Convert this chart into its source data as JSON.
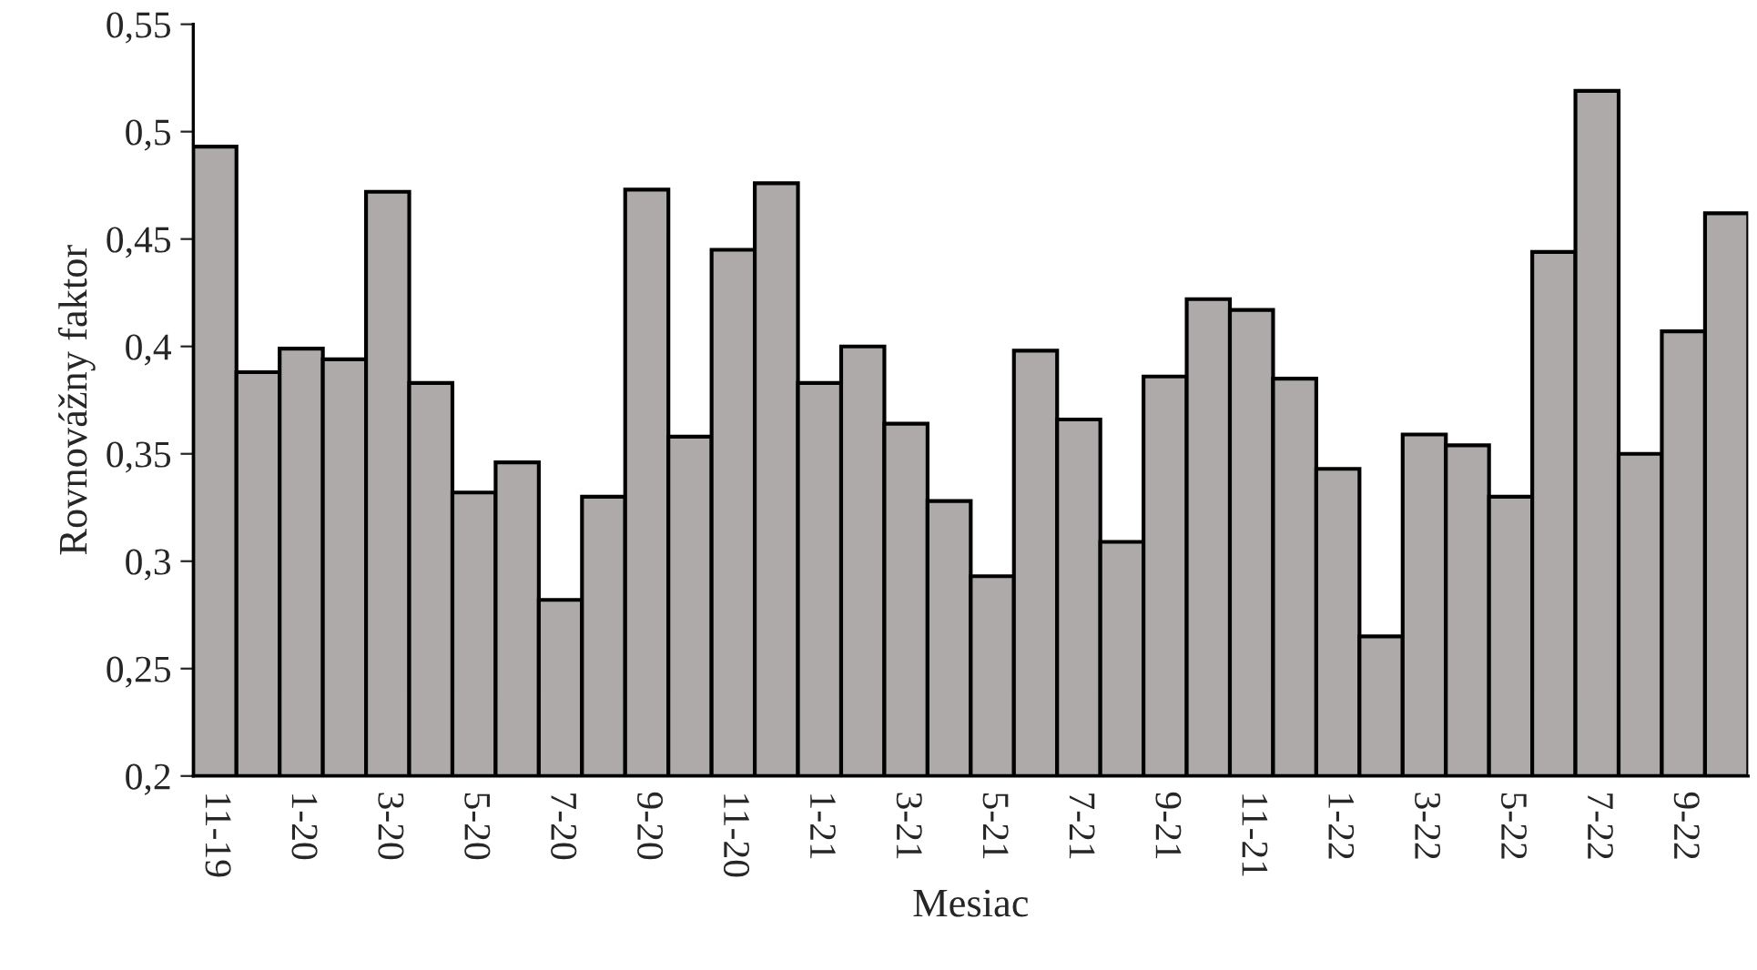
{
  "chart_data": {
    "type": "bar",
    "xlabel": "Mesiac",
    "ylabel": "Rovnovážny faktor",
    "categories": [
      "11-19",
      null,
      "1-20",
      null,
      "3-20",
      null,
      "5-20",
      null,
      "7-20",
      null,
      "9-20",
      null,
      "11-20",
      null,
      "1-21",
      null,
      "3-21",
      null,
      "5-21",
      null,
      "7-21",
      null,
      "9-21",
      null,
      "11-21",
      null,
      "1-22",
      null,
      "3-22",
      null,
      "5-22",
      null,
      "7-22",
      null,
      "9-22",
      null
    ],
    "values": [
      0.493,
      0.388,
      0.399,
      0.394,
      0.472,
      0.383,
      0.332,
      0.346,
      0.282,
      0.33,
      0.473,
      0.358,
      0.445,
      0.476,
      0.383,
      0.4,
      0.364,
      0.328,
      0.293,
      0.398,
      0.366,
      0.309,
      0.386,
      0.422,
      0.417,
      0.385,
      0.343,
      0.265,
      0.359,
      0.354,
      0.33,
      0.444,
      0.519,
      0.35,
      0.407,
      0.462
    ],
    "color": "#aeaaaa",
    "ylim": [
      0.2,
      0.55
    ],
    "yticks": [
      {
        "value": 0.2,
        "label": "0,2"
      },
      {
        "value": 0.25,
        "label": "0,25"
      },
      {
        "value": 0.3,
        "label": "0,3"
      },
      {
        "value": 0.35,
        "label": "0,35"
      },
      {
        "value": 0.4,
        "label": "0,4"
      },
      {
        "value": 0.45,
        "label": "0,45"
      },
      {
        "value": 0.5,
        "label": "0,5"
      },
      {
        "value": 0.55,
        "label": "0,55"
      }
    ],
    "grid": false,
    "legend": false
  }
}
